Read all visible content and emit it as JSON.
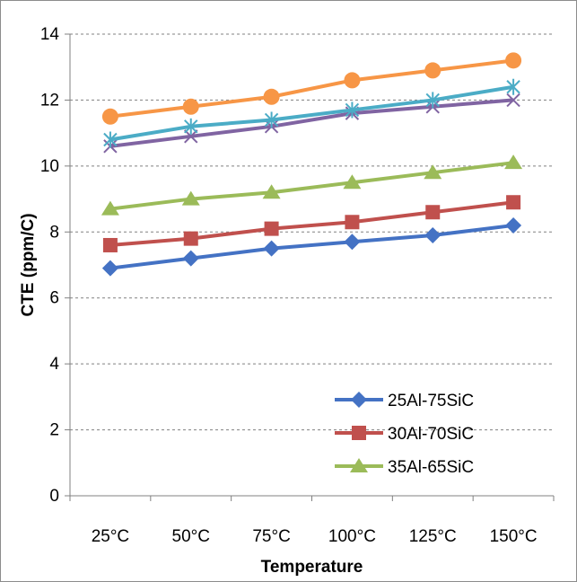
{
  "chart_data": {
    "type": "line",
    "title": "",
    "xlabel": "Temperature",
    "ylabel": "CTE (ppm/C)",
    "categories": [
      "25°C",
      "50°C",
      "75°C",
      "100°C",
      "125°C",
      "150°C"
    ],
    "ylim": [
      0,
      14
    ],
    "yticks": [
      "0",
      "2",
      "4",
      "6",
      "8",
      "10",
      "12",
      "14"
    ],
    "grid": "horizontal-dashed",
    "legend_position": "bottom-right",
    "series": [
      {
        "name": "25Al-75SiC",
        "color": "#4472c4",
        "marker": "diamond",
        "values": [
          6.9,
          7.2,
          7.5,
          7.7,
          7.9,
          8.2
        ]
      },
      {
        "name": "30Al-70SiC",
        "color": "#c0504d",
        "marker": "square",
        "values": [
          7.6,
          7.8,
          8.1,
          8.3,
          8.6,
          8.9
        ]
      },
      {
        "name": "35Al-65SiC",
        "color": "#9bbb59",
        "marker": "triangle",
        "values": [
          8.7,
          9.0,
          9.2,
          9.5,
          9.8,
          10.1
        ]
      },
      {
        "color": "#8064a2",
        "marker": "x",
        "values": [
          10.6,
          10.9,
          11.2,
          11.6,
          11.8,
          12.0
        ]
      },
      {
        "color": "#4bacc6",
        "marker": "star",
        "values": [
          10.8,
          11.2,
          11.4,
          11.7,
          12.0,
          12.4
        ]
      },
      {
        "color": "#f79646",
        "marker": "circle",
        "values": [
          11.5,
          11.8,
          12.1,
          12.6,
          12.9,
          13.2
        ]
      }
    ]
  }
}
